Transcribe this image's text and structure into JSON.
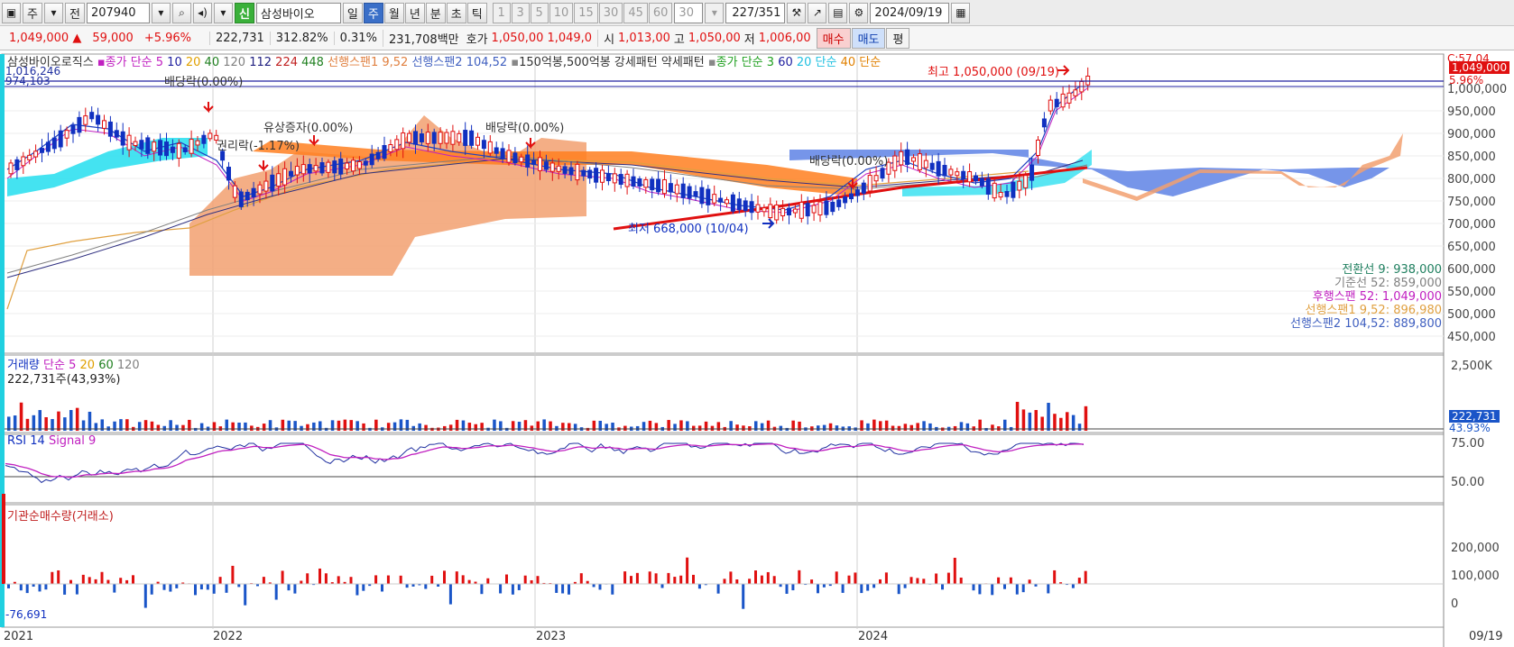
{
  "toolbar": {
    "period_combo": "주",
    "prev_label": "전",
    "code": "207940",
    "credit_badge": "신",
    "stock_name": "삼성바이오",
    "periods": [
      {
        "label": "일",
        "selected": false
      },
      {
        "label": "주",
        "selected": true
      },
      {
        "label": "월",
        "selected": false
      },
      {
        "label": "년",
        "selected": false
      },
      {
        "label": "분",
        "selected": false
      },
      {
        "label": "초",
        "selected": false
      },
      {
        "label": "틱",
        "selected": false
      }
    ],
    "intervals": [
      "1",
      "3",
      "5",
      "10",
      "15",
      "30",
      "45",
      "60"
    ],
    "interval_input": "30",
    "bar_count": "227",
    "bar_total": "/351",
    "date": "2024/09/19"
  },
  "quote": {
    "price": "1,049,000",
    "arrow": "▲",
    "change": "59,000",
    "change_pct": "+5.96%",
    "volume": "222,731",
    "vol_ratio": "312.82%",
    "turnover_pct": "0.31%",
    "amount": "231,708백만",
    "hoga_label": "호가",
    "hoga_ask": "1,050,00",
    "hoga_bid": "1,049,0",
    "open_label": "시",
    "open": "1,013,00",
    "high_label": "고",
    "high": "1,050,00",
    "low_label": "저",
    "low": "1,006,00",
    "buy_label": "매수",
    "sell_label": "매도",
    "eval_label": "평"
  },
  "price_panel": {
    "legend": [
      {
        "text": "삼성바이오로직스",
        "color": "#333333"
      },
      {
        "text": "종가 단순 5",
        "color": "#c020c0"
      },
      {
        "text": "10",
        "color": "#2020a0"
      },
      {
        "text": "20",
        "color": "#e0a000"
      },
      {
        "text": "40",
        "color": "#208020"
      },
      {
        "text": "120",
        "color": "#808080"
      },
      {
        "text": "112",
        "color": "#202080"
      },
      {
        "text": "224",
        "color": "#c02020"
      },
      {
        "text": "448",
        "color": "#208020"
      },
      {
        "text": "선행스팬1 9,52",
        "color": "#e08040"
      },
      {
        "text": "선행스팬2 104,52",
        "color": "#4060c0"
      },
      {
        "text": "150억봉,500억봉 강세패턴",
        "color": "#333333"
      },
      {
        "text": "약세패턴",
        "color": "#333333"
      },
      {
        "text": "종가 단순 3",
        "color": "#20a020"
      },
      {
        "text": "60",
        "color": "#2020a0"
      },
      {
        "text": "20 단순",
        "color": "#20c0e0"
      },
      {
        "text": "40 단순",
        "color": "#e08000"
      }
    ],
    "top_left_value": "1,016,246",
    "top_left_value2": "974,103",
    "top_right_note": "C:57.04",
    "last_price_tag": "1,049,000",
    "last_pct_tag": "5.96%",
    "annotations": [
      {
        "text": "배당락(0.00%)",
        "color": "#333333"
      },
      {
        "text": "유상증자(0.00%)",
        "color": "#333333"
      },
      {
        "text": "배당락(0.00%)",
        "color": "#333333"
      },
      {
        "text": "권리락(-1.17%)",
        "color": "#333333"
      },
      {
        "text": "배당락(0.00%)",
        "color": "#333333"
      },
      {
        "text": "최고 1,050,000 (09/19)",
        "color": "#e01010"
      },
      {
        "text": "최저 668,000 (10/04)",
        "color": "#1030c0"
      }
    ],
    "y_ticks": [
      "1,000,000",
      "950,000",
      "900,000",
      "850,000",
      "800,000",
      "750,000",
      "700,000",
      "650,000",
      "600,000",
      "550,000",
      "500,000",
      "450,000"
    ],
    "ichimoku_readout": [
      {
        "label": "전환선 9",
        "value": "938,000",
        "color": "#208060"
      },
      {
        "label": "기준선 52",
        "value": "859,000",
        "color": "#808080"
      },
      {
        "label": "후행스팬 52",
        "value": "1,049,000",
        "color": "#c020c0"
      },
      {
        "label": "선행스팬1 9,52",
        "value": "896,980",
        "color": "#e0a040"
      },
      {
        "label": "선행스팬2 104,52",
        "value": "889,800",
        "color": "#4060c0"
      }
    ]
  },
  "volume_panel": {
    "legend": [
      {
        "text": "거래량",
        "color": "#1030c0"
      },
      {
        "text": "단순 5",
        "color": "#c020c0"
      },
      {
        "text": "20",
        "color": "#e0a000"
      },
      {
        "text": "60",
        "color": "#208020"
      },
      {
        "text": "120",
        "color": "#808080"
      }
    ],
    "sub": "222,731주(43,93%)",
    "y_tick": "2,500K",
    "last_tag": "222,731",
    "last_pct": "43.93%"
  },
  "rsi_panel": {
    "legend": [
      {
        "text": "RSI 14",
        "color": "#1030c0"
      },
      {
        "text": "Signal 9",
        "color": "#c020c0"
      }
    ],
    "y_ticks": [
      "75.00",
      "50.00"
    ]
  },
  "inst_panel": {
    "legend": [
      {
        "text": "기관순매수량(거래소)",
        "color": "#c02020"
      }
    ],
    "first_value": "-76,691",
    "y_ticks": [
      "200,000",
      "100,000",
      "0"
    ]
  },
  "x_axis": {
    "labels": [
      "2021",
      "2022",
      "2023",
      "2024"
    ],
    "last_date": "09/19"
  },
  "chart_data": {
    "type": "candlestick",
    "period": "weekly",
    "ylim": [
      450000,
      1060000
    ],
    "high": {
      "value": 1050000,
      "date": "09/19"
    },
    "low": {
      "value": 668000,
      "date": "10/04"
    },
    "last_close": 1049000
  }
}
